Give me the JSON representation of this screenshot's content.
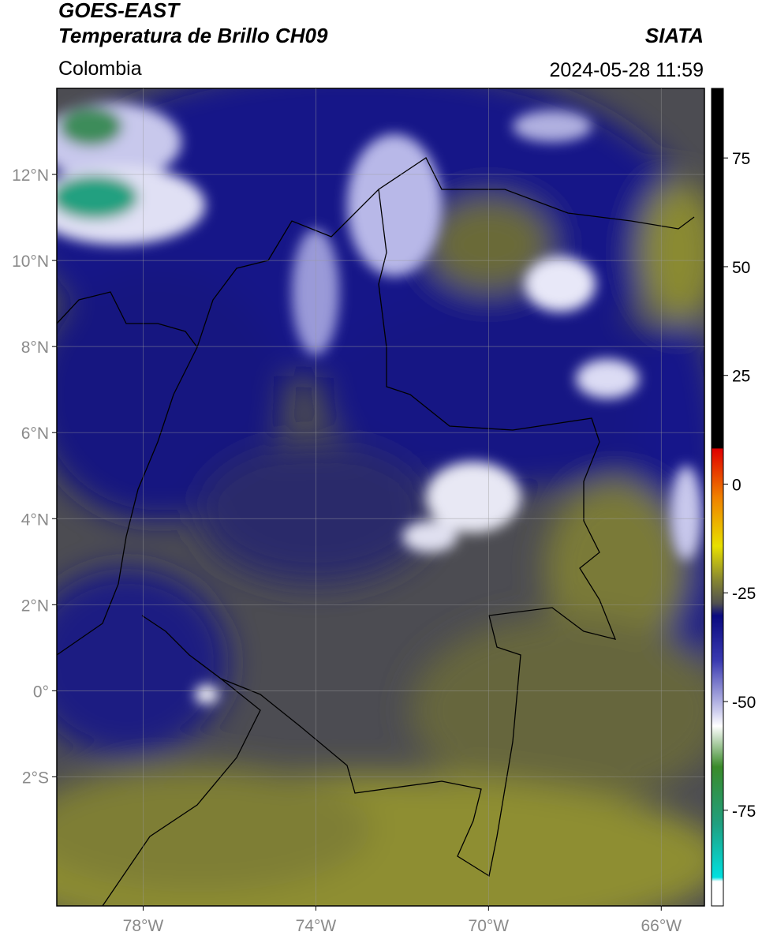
{
  "header": {
    "title": "GOES-EAST",
    "subtitle": "Temperatura de Brillo CH09",
    "region": "Colombia",
    "source": "SIATA",
    "timestamp": "2024-05-28 11:59"
  },
  "map": {
    "xlim": [
      -80,
      -65
    ],
    "ylim": [
      -5,
      14
    ],
    "xticks": [
      {
        "value": -78,
        "label": "78°W"
      },
      {
        "value": -74,
        "label": "74°W"
      },
      {
        "value": -70,
        "label": "70°W"
      },
      {
        "value": -66,
        "label": "66°W"
      }
    ],
    "yticks": [
      {
        "value": 12,
        "label": "12°N"
      },
      {
        "value": 10,
        "label": "10°N"
      },
      {
        "value": 8,
        "label": "8°N"
      },
      {
        "value": 6,
        "label": "6°N"
      },
      {
        "value": 4,
        "label": "4°N"
      },
      {
        "value": 2,
        "label": "2°N"
      },
      {
        "value": 0,
        "label": "0°"
      },
      {
        "value": -2,
        "label": "2°S"
      }
    ],
    "grid": true
  },
  "colorbar": {
    "clim": [
      -97,
      91
    ],
    "ticks": [
      75,
      50,
      25,
      0,
      -25,
      -50,
      -75
    ]
  }
}
